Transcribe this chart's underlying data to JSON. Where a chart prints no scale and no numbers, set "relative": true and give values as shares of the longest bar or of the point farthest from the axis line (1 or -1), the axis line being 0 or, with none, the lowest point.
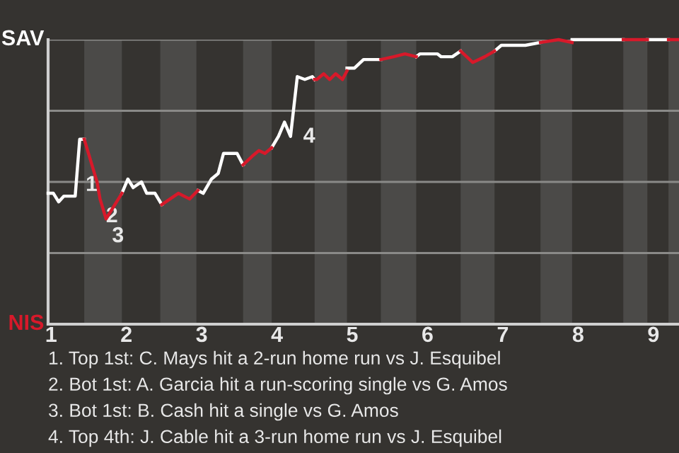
{
  "chart_data": {
    "type": "line",
    "relative": true,
    "xlim": [
      0.96,
      9.34
    ],
    "xticks": [
      1,
      2,
      3,
      4,
      5,
      6,
      7,
      8,
      9
    ],
    "grid": "y",
    "legend": false,
    "marker": "none",
    "line_style": "solid",
    "series": [
      {
        "color": "#ffffff",
        "x": [
          0.96,
          1.03,
          1.1,
          1.17,
          1.32,
          1.38,
          1.44,
          1.45,
          1.94,
          2.02,
          2.09,
          2.2,
          2.27,
          2.38,
          2.47,
          2.49,
          2.95,
          3.02,
          3.13,
          3.22,
          3.29,
          3.47,
          3.55,
          3.56,
          3.93,
          4.02,
          4.1,
          4.18,
          4.27,
          4.37,
          4.47,
          4.5,
          4.52,
          4.93,
          5.03,
          5.15,
          5.3,
          5.38,
          5.4,
          5.85,
          5.9,
          6.13,
          6.18,
          6.33,
          6.44,
          6.47,
          6.89,
          6.98,
          7.04,
          7.3,
          7.5,
          7.52,
          7.92,
          8.6,
          8.62,
          8.92,
          9.2
        ],
        "values": [
          0.46,
          0.46,
          0.43,
          0.45,
          0.45,
          0.65,
          0.65,
          null,
          0.46,
          0.51,
          0.48,
          0.5,
          0.46,
          0.46,
          0.42,
          null,
          0.47,
          0.46,
          0.51,
          0.53,
          0.6,
          0.6,
          0.56,
          null,
          0.62,
          0.66,
          0.71,
          0.66,
          0.87,
          0.86,
          0.87,
          0.86,
          null,
          0.9,
          0.9,
          0.93,
          0.93,
          0.93,
          null,
          0.94,
          0.95,
          0.95,
          0.94,
          0.94,
          0.96,
          null,
          0.96,
          0.98,
          0.98,
          0.98,
          0.99,
          null,
          1.0,
          1.0,
          null,
          1.0,
          1.0
        ]
      },
      {
        "color": "#d7192a",
        "x": [
          1.44,
          1.61,
          1.65,
          1.73,
          1.94,
          1.96,
          2.47,
          2.58,
          2.69,
          2.84,
          2.95,
          2.96,
          3.55,
          3.67,
          3.76,
          3.84,
          3.93,
          3.95,
          4.5,
          4.53,
          4.62,
          4.7,
          4.78,
          4.87,
          4.93,
          4.95,
          5.38,
          5.55,
          5.7,
          5.85,
          5.88,
          6.44,
          6.6,
          6.76,
          6.89,
          6.91,
          7.5,
          7.74,
          7.92,
          7.94,
          8.6,
          8.92,
          8.94,
          9.2,
          9.34
        ],
        "values": [
          0.65,
          0.5,
          0.44,
          0.37,
          0.46,
          null,
          0.42,
          0.44,
          0.46,
          0.44,
          0.47,
          null,
          0.56,
          0.59,
          0.61,
          0.6,
          0.62,
          null,
          0.86,
          0.86,
          0.88,
          0.86,
          0.88,
          0.86,
          0.89,
          null,
          0.93,
          0.94,
          0.95,
          0.94,
          null,
          0.96,
          0.92,
          0.94,
          0.96,
          null,
          0.99,
          1.0,
          0.99,
          null,
          1.0,
          1.0,
          null,
          1.0,
          1.0
        ]
      }
    ],
    "bands": [
      {
        "axis": "x",
        "from": 1.44,
        "to": 1.94,
        "color": "#4b4a48"
      },
      {
        "axis": "x",
        "from": 2.45,
        "to": 2.93,
        "color": "#4b4a48"
      },
      {
        "axis": "x",
        "from": 3.55,
        "to": 3.93,
        "color": "#4b4a48"
      },
      {
        "axis": "x",
        "from": 4.5,
        "to": 4.93,
        "color": "#4b4a48"
      },
      {
        "axis": "x",
        "from": 5.38,
        "to": 5.85,
        "color": "#4b4a48"
      },
      {
        "axis": "x",
        "from": 6.44,
        "to": 6.89,
        "color": "#4b4a48"
      },
      {
        "axis": "x",
        "from": 7.5,
        "to": 7.92,
        "color": "#4b4a48"
      },
      {
        "axis": "x",
        "from": 8.6,
        "to": 8.92,
        "color": "#4b4a48"
      },
      {
        "axis": "x",
        "from": 9.2,
        "to": 9.34,
        "color": "#4b4a48"
      }
    ],
    "annotations": [
      "SAV",
      "NIS",
      {
        "text": "1",
        "x": 1.38,
        "y": 0.55
      },
      {
        "text": "2",
        "x": 1.65,
        "y": 0.44
      },
      {
        "text": "3",
        "x": 1.73,
        "y": 0.37
      },
      {
        "text": "4",
        "x": 4.27,
        "y": 0.72
      },
      "1. Top 1st: C. Mays hit a 2-run home run vs J. Esquibel",
      "2. Bot 1st: A. Garcia hit a run-scoring single vs G. Amos",
      "3. Bot 1st: B. Cash hit a single vs G. Amos",
      "4. Top 4th: J. Cable hit a 3-run home run vs J. Esquibel"
    ]
  }
}
